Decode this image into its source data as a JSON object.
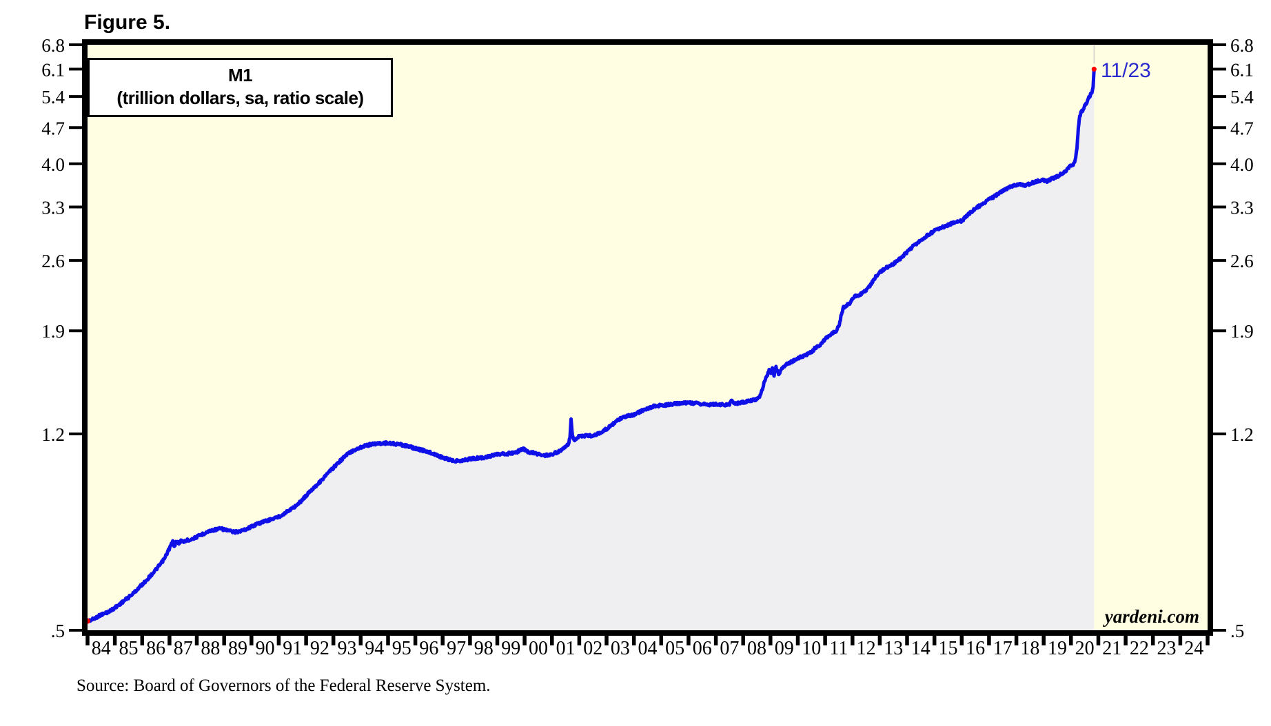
{
  "figure_label": "Figure 5.",
  "chart_title": {
    "line1": "M1",
    "line2": "(trillion dollars, sa, ratio scale)"
  },
  "annotation": "11/23",
  "watermark": "yardeni.com",
  "source_note": "Source: Board of Governors of the Federal Reserve System.",
  "colors": {
    "plot_background": "#fffee2",
    "area_fill": "#efeff2",
    "line": "#0f0fe8",
    "annotation_blue": "#2a2ace",
    "marker_red": "#ff0000",
    "axis_black": "#000000",
    "latest_marker_line": "#c8c8c8"
  },
  "chart_data": {
    "type": "area",
    "title": "M1 (trillion dollars, sa, ratio scale)",
    "xlabel": "",
    "ylabel": "trillion dollars",
    "y_scale": "log (ratio scale)",
    "grid": false,
    "legend": false,
    "x_range": [
      1984,
      2025
    ],
    "y_range": [
      0.5,
      6.8
    ],
    "x_tick_labels": [
      "84",
      "85",
      "86",
      "87",
      "88",
      "89",
      "90",
      "91",
      "92",
      "93",
      "94",
      "95",
      "96",
      "97",
      "98",
      "99",
      "00",
      "01",
      "02",
      "03",
      "04",
      "05",
      "06",
      "07",
      "08",
      "09",
      "10",
      "11",
      "12",
      "13",
      "14",
      "15",
      "16",
      "17",
      "18",
      "19",
      "20",
      "21",
      "22",
      "23",
      "24"
    ],
    "y_ticks": [
      0.5,
      1.2,
      1.9,
      2.6,
      3.3,
      4.0,
      4.7,
      5.4,
      6.1,
      6.8
    ],
    "y_tick_labels": [
      ".5",
      "1.2",
      "1.9",
      "2.6",
      "3.3",
      "4.0",
      "4.7",
      "5.4",
      "6.1",
      "6.8"
    ],
    "last_point_label": "11/23",
    "last_point_value": 6.1,
    "series": [
      {
        "name": "M1 (trillion dollars, sa)",
        "points": [
          [
            1984.0,
            0.521
          ],
          [
            1984.17,
            0.524
          ],
          [
            1984.33,
            0.53
          ],
          [
            1984.5,
            0.536
          ],
          [
            1984.67,
            0.54
          ],
          [
            1984.83,
            0.545
          ],
          [
            1985.0,
            0.553
          ],
          [
            1985.17,
            0.561
          ],
          [
            1985.33,
            0.57
          ],
          [
            1985.5,
            0.579
          ],
          [
            1985.67,
            0.589
          ],
          [
            1985.83,
            0.601
          ],
          [
            1986.0,
            0.613
          ],
          [
            1986.17,
            0.626
          ],
          [
            1986.33,
            0.64
          ],
          [
            1986.5,
            0.655
          ],
          [
            1986.67,
            0.671
          ],
          [
            1986.83,
            0.69
          ],
          [
            1986.95,
            0.712
          ],
          [
            1987.05,
            0.73
          ],
          [
            1987.12,
            0.742
          ],
          [
            1987.17,
            0.727
          ],
          [
            1987.25,
            0.744
          ],
          [
            1987.33,
            0.735
          ],
          [
            1987.42,
            0.746
          ],
          [
            1987.5,
            0.741
          ],
          [
            1987.62,
            0.746
          ],
          [
            1987.75,
            0.749
          ],
          [
            1987.87,
            0.753
          ],
          [
            1988.0,
            0.758
          ],
          [
            1988.17,
            0.766
          ],
          [
            1988.33,
            0.773
          ],
          [
            1988.5,
            0.779
          ],
          [
            1988.67,
            0.783
          ],
          [
            1988.83,
            0.786
          ],
          [
            1989.0,
            0.784
          ],
          [
            1989.17,
            0.779
          ],
          [
            1989.33,
            0.775
          ],
          [
            1989.5,
            0.776
          ],
          [
            1989.67,
            0.78
          ],
          [
            1989.83,
            0.786
          ],
          [
            1990.0,
            0.794
          ],
          [
            1990.25,
            0.805
          ],
          [
            1990.5,
            0.813
          ],
          [
            1990.75,
            0.821
          ],
          [
            1991.0,
            0.829
          ],
          [
            1991.25,
            0.845
          ],
          [
            1991.5,
            0.861
          ],
          [
            1991.75,
            0.882
          ],
          [
            1992.0,
            0.911
          ],
          [
            1992.25,
            0.941
          ],
          [
            1992.5,
            0.968
          ],
          [
            1992.75,
            1.0
          ],
          [
            1993.0,
            1.032
          ],
          [
            1993.25,
            1.064
          ],
          [
            1993.5,
            1.095
          ],
          [
            1993.75,
            1.116
          ],
          [
            1994.0,
            1.131
          ],
          [
            1994.25,
            1.141
          ],
          [
            1994.5,
            1.148
          ],
          [
            1994.75,
            1.151
          ],
          [
            1995.0,
            1.152
          ],
          [
            1995.25,
            1.148
          ],
          [
            1995.5,
            1.143
          ],
          [
            1995.75,
            1.135
          ],
          [
            1996.0,
            1.124
          ],
          [
            1996.25,
            1.116
          ],
          [
            1996.5,
            1.106
          ],
          [
            1996.75,
            1.093
          ],
          [
            1997.0,
            1.08
          ],
          [
            1997.25,
            1.069
          ],
          [
            1997.5,
            1.064
          ],
          [
            1997.75,
            1.067
          ],
          [
            1998.0,
            1.073
          ],
          [
            1998.25,
            1.077
          ],
          [
            1998.5,
            1.08
          ],
          [
            1998.75,
            1.087
          ],
          [
            1999.0,
            1.094
          ],
          [
            1999.25,
            1.097
          ],
          [
            1999.5,
            1.1
          ],
          [
            1999.75,
            1.109
          ],
          [
            1999.93,
            1.124
          ],
          [
            2000.08,
            1.11
          ],
          [
            2000.25,
            1.104
          ],
          [
            2000.5,
            1.097
          ],
          [
            2000.75,
            1.09
          ],
          [
            2001.0,
            1.096
          ],
          [
            2001.2,
            1.106
          ],
          [
            2001.4,
            1.12
          ],
          [
            2001.58,
            1.142
          ],
          [
            2001.66,
            1.175
          ],
          [
            2001.7,
            1.282
          ],
          [
            2001.75,
            1.19
          ],
          [
            2001.83,
            1.162
          ],
          [
            2002.0,
            1.187
          ],
          [
            2002.25,
            1.191
          ],
          [
            2002.5,
            1.189
          ],
          [
            2002.75,
            1.206
          ],
          [
            2003.0,
            1.226
          ],
          [
            2003.25,
            1.256
          ],
          [
            2003.5,
            1.283
          ],
          [
            2003.75,
            1.298
          ],
          [
            2004.0,
            1.307
          ],
          [
            2004.25,
            1.327
          ],
          [
            2004.5,
            1.345
          ],
          [
            2004.75,
            1.358
          ],
          [
            2005.0,
            1.362
          ],
          [
            2005.25,
            1.366
          ],
          [
            2005.5,
            1.372
          ],
          [
            2005.75,
            1.376
          ],
          [
            2006.0,
            1.38
          ],
          [
            2006.25,
            1.375
          ],
          [
            2006.5,
            1.37
          ],
          [
            2006.75,
            1.368
          ],
          [
            2007.0,
            1.369
          ],
          [
            2007.25,
            1.366
          ],
          [
            2007.5,
            1.369
          ],
          [
            2007.58,
            1.396
          ],
          [
            2007.67,
            1.373
          ],
          [
            2007.83,
            1.376
          ],
          [
            2008.0,
            1.381
          ],
          [
            2008.25,
            1.389
          ],
          [
            2008.5,
            1.402
          ],
          [
            2008.62,
            1.422
          ],
          [
            2008.7,
            1.468
          ],
          [
            2008.78,
            1.516
          ],
          [
            2008.87,
            1.552
          ],
          [
            2008.95,
            1.592
          ],
          [
            2009.02,
            1.572
          ],
          [
            2009.07,
            1.618
          ],
          [
            2009.13,
            1.556
          ],
          [
            2009.2,
            1.612
          ],
          [
            2009.3,
            1.568
          ],
          [
            2009.42,
            1.606
          ],
          [
            2009.55,
            1.636
          ],
          [
            2009.7,
            1.65
          ],
          [
            2009.85,
            1.662
          ],
          [
            2010.0,
            1.681
          ],
          [
            2010.2,
            1.698
          ],
          [
            2010.4,
            1.716
          ],
          [
            2010.55,
            1.736
          ],
          [
            2010.63,
            1.762
          ],
          [
            2010.8,
            1.782
          ],
          [
            2011.0,
            1.832
          ],
          [
            2011.2,
            1.866
          ],
          [
            2011.4,
            1.9
          ],
          [
            2011.5,
            1.935
          ],
          [
            2011.58,
            2.025
          ],
          [
            2011.67,
            2.108
          ],
          [
            2011.8,
            2.132
          ],
          [
            2011.92,
            2.152
          ],
          [
            2012.0,
            2.202
          ],
          [
            2012.25,
            2.232
          ],
          [
            2012.5,
            2.272
          ],
          [
            2012.7,
            2.35
          ],
          [
            2012.85,
            2.42
          ],
          [
            2013.0,
            2.468
          ],
          [
            2013.25,
            2.52
          ],
          [
            2013.5,
            2.561
          ],
          [
            2013.75,
            2.622
          ],
          [
            2014.0,
            2.701
          ],
          [
            2014.25,
            2.781
          ],
          [
            2014.5,
            2.842
          ],
          [
            2014.75,
            2.912
          ],
          [
            2015.0,
            2.966
          ],
          [
            2015.25,
            3.006
          ],
          [
            2015.5,
            3.046
          ],
          [
            2015.75,
            3.082
          ],
          [
            2016.0,
            3.102
          ],
          [
            2016.25,
            3.192
          ],
          [
            2016.5,
            3.276
          ],
          [
            2016.75,
            3.342
          ],
          [
            2017.0,
            3.412
          ],
          [
            2017.25,
            3.472
          ],
          [
            2017.5,
            3.542
          ],
          [
            2017.75,
            3.602
          ],
          [
            2018.0,
            3.642
          ],
          [
            2018.15,
            3.652
          ],
          [
            2018.3,
            3.632
          ],
          [
            2018.5,
            3.662
          ],
          [
            2018.75,
            3.702
          ],
          [
            2019.0,
            3.722
          ],
          [
            2019.12,
            3.702
          ],
          [
            2019.25,
            3.732
          ],
          [
            2019.5,
            3.782
          ],
          [
            2019.75,
            3.852
          ],
          [
            2019.9,
            3.922
          ],
          [
            2020.0,
            3.962
          ],
          [
            2020.1,
            3.992
          ],
          [
            2020.17,
            4.09
          ],
          [
            2020.22,
            4.3
          ],
          [
            2020.27,
            4.7
          ],
          [
            2020.32,
            4.95
          ],
          [
            2020.38,
            5.04
          ],
          [
            2020.45,
            5.11
          ],
          [
            2020.52,
            5.19
          ],
          [
            2020.58,
            5.27
          ],
          [
            2020.63,
            5.33
          ],
          [
            2020.7,
            5.43
          ],
          [
            2020.75,
            5.49
          ],
          [
            2020.79,
            5.545
          ],
          [
            2020.81,
            5.64
          ],
          [
            2020.83,
            5.9
          ],
          [
            2020.845,
            6.1
          ]
        ]
      }
    ]
  }
}
